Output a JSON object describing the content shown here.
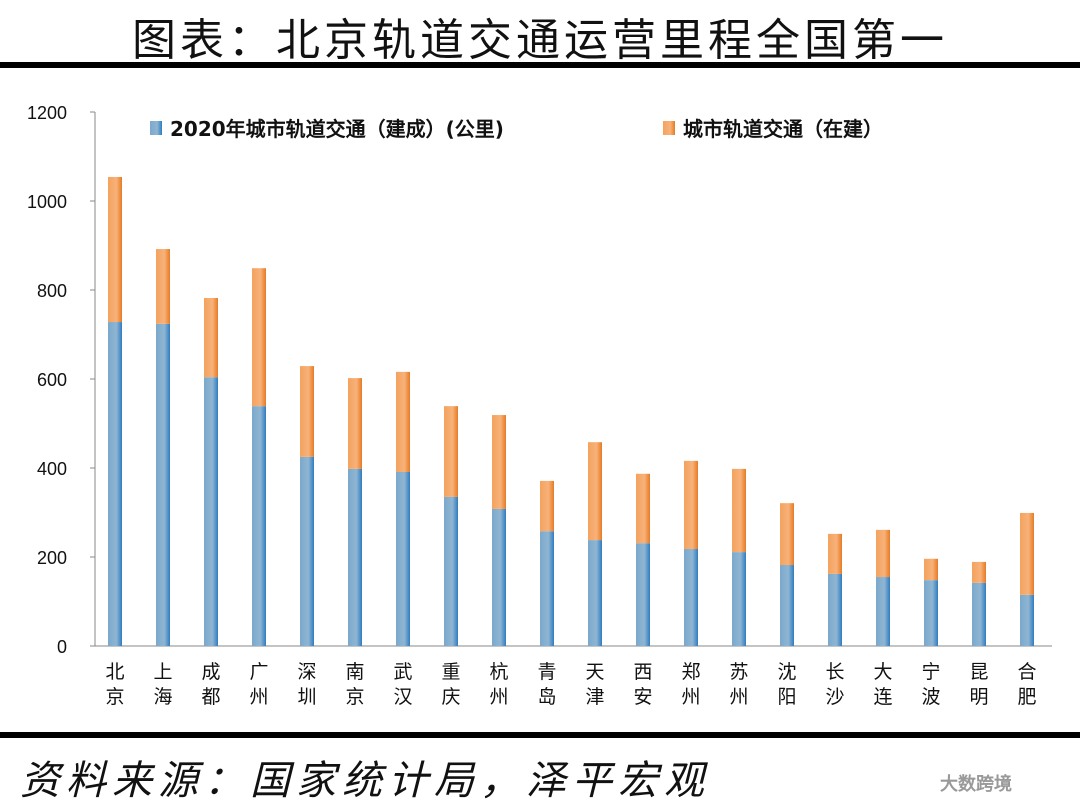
{
  "header": {
    "title": "图表：北京轨道交通运营里程全国第一"
  },
  "footer": {
    "source": "资料来源：国家统计局，泽平宏观",
    "watermark": "大数跨境"
  },
  "chart_data": {
    "type": "bar",
    "stacked": true,
    "title": "",
    "xlabel": "",
    "ylabel": "",
    "ylim": [
      0,
      1200
    ],
    "yticks": [
      0,
      200,
      400,
      600,
      800,
      1000,
      1200
    ],
    "grid": false,
    "legend_position": "top",
    "categories": [
      "北京",
      "上海",
      "成都",
      "广州",
      "深圳",
      "南京",
      "武汉",
      "重庆",
      "杭州",
      "青岛",
      "天津",
      "西安",
      "郑州",
      "苏州",
      "沈阳",
      "长沙",
      "大连",
      "宁波",
      "昆明",
      "合肥"
    ],
    "series": [
      {
        "name": "2020年城市轨道交通（建成）(公里)",
        "color": "#6a9ec5",
        "values": [
          728,
          724,
          604,
          539,
          425,
          398,
          391,
          335,
          308,
          258,
          238,
          231,
          218,
          211,
          182,
          162,
          155,
          148,
          142,
          115
        ]
      },
      {
        "name": "城市轨道交通（在建）",
        "color": "#f4a461",
        "values": [
          326,
          168,
          178,
          310,
          204,
          204,
          225,
          204,
          211,
          113,
          220,
          156,
          198,
          187,
          139,
          90,
          106,
          48,
          47,
          184
        ]
      }
    ]
  }
}
